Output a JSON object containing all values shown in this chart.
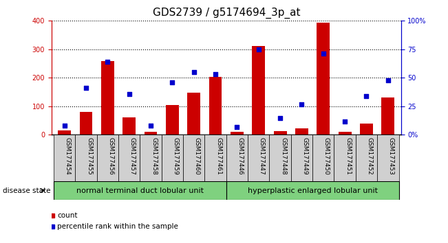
{
  "title": "GDS2739 / g5174694_3p_at",
  "categories": [
    "GSM177454",
    "GSM177455",
    "GSM177456",
    "GSM177457",
    "GSM177458",
    "GSM177459",
    "GSM177460",
    "GSM177461",
    "GSM177446",
    "GSM177447",
    "GSM177448",
    "GSM177449",
    "GSM177450",
    "GSM177451",
    "GSM177452",
    "GSM177453"
  ],
  "counts": [
    15,
    80,
    258,
    62,
    10,
    105,
    148,
    203,
    10,
    312,
    12,
    22,
    392,
    10,
    40,
    132
  ],
  "percentiles": [
    8,
    41,
    64,
    36,
    8,
    46,
    55,
    53,
    7,
    75,
    15,
    27,
    71,
    12,
    34,
    48
  ],
  "group1_label": "normal terminal duct lobular unit",
  "group2_label": "hyperplastic enlarged lobular unit",
  "n_group1": 8,
  "n_group2": 8,
  "bar_color": "#cc0000",
  "dot_color": "#0000cc",
  "left_ylim": [
    0,
    400
  ],
  "right_ylim": [
    0,
    100
  ],
  "left_yticks": [
    0,
    100,
    200,
    300,
    400
  ],
  "right_yticks": [
    0,
    25,
    50,
    75,
    100
  ],
  "right_yticklabels": [
    "0%",
    "25",
    "50",
    "75",
    "100%"
  ],
  "left_tick_color": "#cc0000",
  "right_tick_color": "#0000cc",
  "group_color": "#7FD17F",
  "xtick_bg_color": "#d0d0d0",
  "disease_state_label": "disease state",
  "legend_count_label": "count",
  "legend_percentile_label": "percentile rank within the sample",
  "title_fontsize": 11,
  "tick_fontsize": 7,
  "xtick_fontsize": 6.5,
  "group_fontsize": 8,
  "legend_fontsize": 7.5
}
